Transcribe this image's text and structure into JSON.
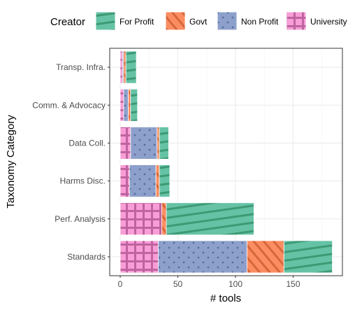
{
  "chart_data": {
    "type": "bar",
    "orientation": "horizontal",
    "stacked": true,
    "xlabel": "# tools",
    "ylabel": "Taxonomy Category",
    "xlim": [
      0,
      190
    ],
    "x_ticks": [
      0,
      50,
      100,
      150
    ],
    "grid": true,
    "legend": {
      "title": "Creator",
      "placement": "top"
    },
    "categories": [
      "Standards",
      "Perf. Analysis",
      "Harms Disc.",
      "Data Coll.",
      "Comm. & Advocacy",
      "Transp. Infra."
    ],
    "series": [
      {
        "name": "University",
        "color": "#e78ac3",
        "pattern": "grid",
        "values": [
          33,
          36,
          8,
          9,
          3,
          2
        ]
      },
      {
        "name": "Non Profit",
        "color": "#8da0cb",
        "pattern": "dots",
        "values": [
          77,
          0,
          23,
          23,
          4,
          1
        ]
      },
      {
        "name": "Govt",
        "color": "#fc8d62",
        "pattern": "diagonal",
        "values": [
          32,
          4,
          3,
          2,
          2,
          2
        ]
      },
      {
        "name": "For Profit",
        "color": "#66c2a5",
        "pattern": "stripe",
        "values": [
          42,
          76,
          9,
          8,
          6,
          9
        ]
      }
    ],
    "legend_order": [
      "For Profit",
      "Govt",
      "Non Profit",
      "University"
    ]
  }
}
